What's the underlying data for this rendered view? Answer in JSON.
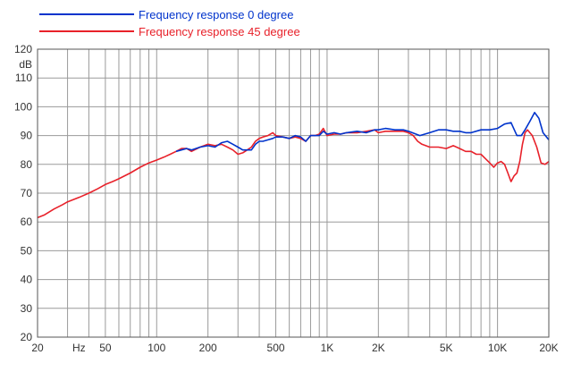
{
  "chart_data": {
    "type": "line",
    "title": "",
    "xlabel": "",
    "ylabel": "dB",
    "x_scale": "log",
    "xlim": [
      20,
      20000
    ],
    "ylim": [
      20,
      120
    ],
    "grid": true,
    "legend_position": "top-left",
    "x_ticks": [
      {
        "value": 20,
        "label": "20"
      },
      {
        "value": 35,
        "label": "Hz"
      },
      {
        "value": 50,
        "label": "50"
      },
      {
        "value": 100,
        "label": "100"
      },
      {
        "value": 200,
        "label": "200"
      },
      {
        "value": 500,
        "label": "500"
      },
      {
        "value": 1000,
        "label": "1K"
      },
      {
        "value": 2000,
        "label": "2K"
      },
      {
        "value": 5000,
        "label": "5K"
      },
      {
        "value": 10000,
        "label": "10K"
      },
      {
        "value": 20000,
        "label": "20K"
      }
    ],
    "y_ticks": [
      20,
      30,
      40,
      50,
      60,
      70,
      80,
      90,
      100,
      110,
      120
    ],
    "series": [
      {
        "name": "Frequency response 0 degree",
        "color": "#0033cc",
        "points": [
          [
            130,
            84.5
          ],
          [
            150,
            85.5
          ],
          [
            160,
            85
          ],
          [
            180,
            86
          ],
          [
            200,
            86.5
          ],
          [
            220,
            86
          ],
          [
            240,
            87.5
          ],
          [
            260,
            88
          ],
          [
            280,
            87
          ],
          [
            300,
            86
          ],
          [
            320,
            85
          ],
          [
            340,
            85
          ],
          [
            360,
            85
          ],
          [
            380,
            87
          ],
          [
            400,
            88
          ],
          [
            420,
            88
          ],
          [
            450,
            88.5
          ],
          [
            480,
            89
          ],
          [
            500,
            89.5
          ],
          [
            550,
            89.5
          ],
          [
            600,
            89
          ],
          [
            650,
            90
          ],
          [
            700,
            89.5
          ],
          [
            750,
            88
          ],
          [
            800,
            90
          ],
          [
            900,
            90
          ],
          [
            950,
            91.5
          ],
          [
            1000,
            90.5
          ],
          [
            1100,
            91
          ],
          [
            1200,
            90.5
          ],
          [
            1300,
            91
          ],
          [
            1500,
            91.5
          ],
          [
            1700,
            91
          ],
          [
            1900,
            92
          ],
          [
            2000,
            92
          ],
          [
            2200,
            92.5
          ],
          [
            2500,
            92
          ],
          [
            2800,
            92
          ],
          [
            3000,
            91.5
          ],
          [
            3500,
            90
          ],
          [
            4000,
            91
          ],
          [
            4500,
            92
          ],
          [
            5000,
            92
          ],
          [
            5500,
            91.5
          ],
          [
            6000,
            91.5
          ],
          [
            6500,
            91
          ],
          [
            7000,
            91
          ],
          [
            8000,
            92
          ],
          [
            9000,
            92
          ],
          [
            10000,
            92.5
          ],
          [
            11000,
            94
          ],
          [
            12000,
            94.5
          ],
          [
            13000,
            90
          ],
          [
            13800,
            90
          ],
          [
            14500,
            92
          ],
          [
            15500,
            95
          ],
          [
            16500,
            98
          ],
          [
            17500,
            96
          ],
          [
            18500,
            91
          ],
          [
            20000,
            88.5
          ]
        ]
      },
      {
        "name": "Frequency response 45 degree",
        "color": "#e8212a",
        "points": [
          [
            20,
            61.5
          ],
          [
            22,
            62.5
          ],
          [
            25,
            64.5
          ],
          [
            28,
            66
          ],
          [
            30,
            67
          ],
          [
            35,
            68.5
          ],
          [
            40,
            70
          ],
          [
            45,
            71.5
          ],
          [
            50,
            73
          ],
          [
            55,
            74
          ],
          [
            60,
            75
          ],
          [
            70,
            77
          ],
          [
            80,
            79
          ],
          [
            90,
            80.5
          ],
          [
            100,
            81.5
          ],
          [
            110,
            82.5
          ],
          [
            120,
            83.5
          ],
          [
            130,
            84.5
          ],
          [
            140,
            85.5
          ],
          [
            150,
            85.5
          ],
          [
            160,
            84.5
          ],
          [
            180,
            86
          ],
          [
            200,
            87
          ],
          [
            220,
            86.5
          ],
          [
            240,
            87
          ],
          [
            260,
            86
          ],
          [
            280,
            85
          ],
          [
            300,
            83.5
          ],
          [
            320,
            84
          ],
          [
            340,
            85
          ],
          [
            360,
            86
          ],
          [
            380,
            88
          ],
          [
            400,
            89
          ],
          [
            420,
            89.5
          ],
          [
            450,
            90
          ],
          [
            480,
            91
          ],
          [
            500,
            90
          ],
          [
            550,
            89.5
          ],
          [
            600,
            89
          ],
          [
            650,
            89.5
          ],
          [
            700,
            89
          ],
          [
            750,
            88
          ],
          [
            800,
            90
          ],
          [
            850,
            90
          ],
          [
            900,
            90.5
          ],
          [
            950,
            92.5
          ],
          [
            1000,
            90
          ],
          [
            1100,
            90.5
          ],
          [
            1200,
            90.5
          ],
          [
            1300,
            91
          ],
          [
            1400,
            91
          ],
          [
            1500,
            91
          ],
          [
            1700,
            91.5
          ],
          [
            1900,
            92
          ],
          [
            2000,
            91
          ],
          [
            2200,
            91.5
          ],
          [
            2500,
            91.5
          ],
          [
            2800,
            91.5
          ],
          [
            3000,
            91
          ],
          [
            3200,
            90
          ],
          [
            3400,
            88
          ],
          [
            3600,
            87
          ],
          [
            4000,
            86
          ],
          [
            4500,
            86
          ],
          [
            5000,
            85.5
          ],
          [
            5500,
            86.5
          ],
          [
            6000,
            85.5
          ],
          [
            6500,
            84.5
          ],
          [
            7000,
            84.5
          ],
          [
            7500,
            83.5
          ],
          [
            8000,
            83.5
          ],
          [
            8500,
            82
          ],
          [
            9000,
            80.5
          ],
          [
            9500,
            79
          ],
          [
            10000,
            80.5
          ],
          [
            10500,
            81
          ],
          [
            11000,
            80
          ],
          [
            11500,
            77
          ],
          [
            12000,
            74
          ],
          [
            12500,
            76
          ],
          [
            13000,
            77
          ],
          [
            13500,
            81
          ],
          [
            14000,
            87
          ],
          [
            14500,
            91
          ],
          [
            15000,
            92
          ],
          [
            16000,
            90
          ],
          [
            17000,
            86
          ],
          [
            18000,
            80.5
          ],
          [
            19000,
            80
          ],
          [
            20000,
            81
          ]
        ]
      }
    ]
  }
}
